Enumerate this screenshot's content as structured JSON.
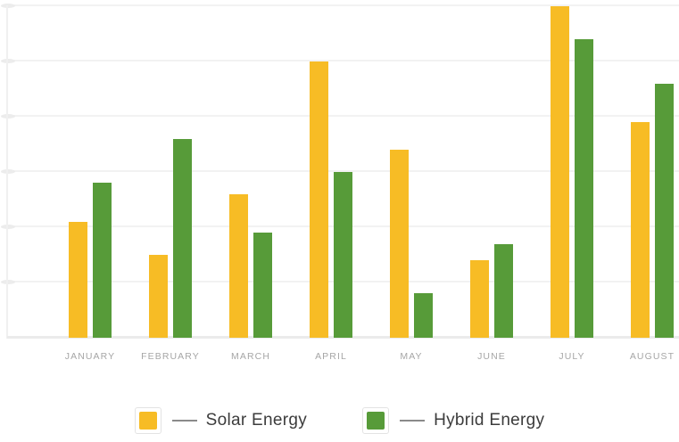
{
  "chart_data": {
    "type": "bar",
    "title": "",
    "xlabel": "",
    "ylabel": "",
    "categories": [
      "JANUARY",
      "FEBRUARY",
      "MARCH",
      "APRIL",
      "MAY",
      "JUNE",
      "JULY",
      "AUGUST"
    ],
    "series": [
      {
        "name": "Solar Energy",
        "color": "#F7BC25",
        "values": [
          21,
          15,
          26,
          50,
          34,
          14,
          60,
          39
        ]
      },
      {
        "name": "Hybrid Energy",
        "color": "#579B39",
        "values": [
          28,
          36,
          19,
          30,
          8,
          17,
          54,
          46
        ]
      }
    ],
    "ylim": [
      0,
      60
    ],
    "gridline_step": 10,
    "grid": true,
    "y_tick_labels_visible": false,
    "legend_position": "bottom"
  },
  "legend": {
    "items": [
      {
        "label": "Solar Energy",
        "color": "#F7BC25"
      },
      {
        "label": "Hybrid Energy",
        "color": "#579B39"
      }
    ]
  },
  "palette": {
    "gridline": "#f2f2f2",
    "baseline": "#ebebeb",
    "tick_pill": "#ececec",
    "category_label": "#a6a6a6",
    "legend_text": "#3c3c3c",
    "legend_dash": "#8a8a8a"
  }
}
